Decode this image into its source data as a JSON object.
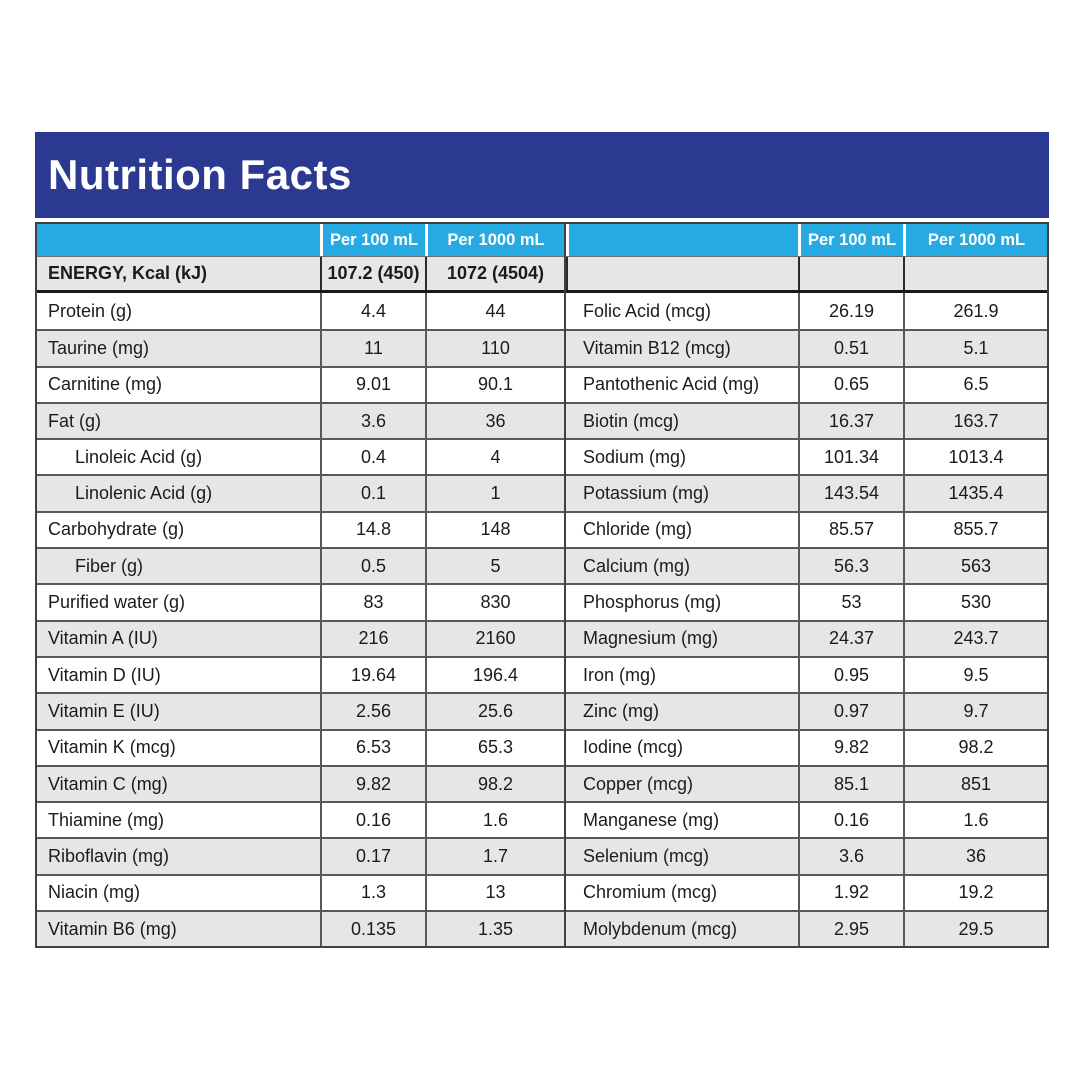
{
  "title": "Nutrition Facts",
  "colors": {
    "banner_blue": "#2B3990",
    "header_cyan": "#27AAE1",
    "zebra_gray": "#E6E6E6"
  },
  "columns": {
    "per100": "Per 100 mL",
    "per1000": "Per 1000 mL"
  },
  "energy": {
    "label": "ENERGY, Kcal (kJ)",
    "per100": "107.2 (450)",
    "per1000": "1072 (4504)"
  },
  "tables": {
    "left": {
      "rows": [
        {
          "label": "Protein (g)",
          "per100": "4.4",
          "per1000": "44",
          "indent": false
        },
        {
          "label": "Taurine (mg)",
          "per100": "11",
          "per1000": "110",
          "indent": false
        },
        {
          "label": "Carnitine (mg)",
          "per100": "9.01",
          "per1000": "90.1",
          "indent": false
        },
        {
          "label": "Fat (g)",
          "per100": "3.6",
          "per1000": "36",
          "indent": false
        },
        {
          "label": "Linoleic Acid (g)",
          "per100": "0.4",
          "per1000": "4",
          "indent": true
        },
        {
          "label": "Linolenic Acid (g)",
          "per100": "0.1",
          "per1000": "1",
          "indent": true
        },
        {
          "label": "Carbohydrate (g)",
          "per100": "14.8",
          "per1000": "148",
          "indent": false
        },
        {
          "label": "Fiber (g)",
          "per100": "0.5",
          "per1000": "5",
          "indent": true
        },
        {
          "label": "Purified water (g)",
          "per100": "83",
          "per1000": "830",
          "indent": false
        },
        {
          "label": "Vitamin A (IU)",
          "per100": "216",
          "per1000": "2160",
          "indent": false
        },
        {
          "label": "Vitamin D (IU)",
          "per100": "19.64",
          "per1000": "196.4",
          "indent": false
        },
        {
          "label": "Vitamin E (IU)",
          "per100": "2.56",
          "per1000": "25.6",
          "indent": false
        },
        {
          "label": "Vitamin K (mcg)",
          "per100": "6.53",
          "per1000": "65.3",
          "indent": false
        },
        {
          "label": "Vitamin C (mg)",
          "per100": "9.82",
          "per1000": "98.2",
          "indent": false
        },
        {
          "label": "Thiamine (mg)",
          "per100": "0.16",
          "per1000": "1.6",
          "indent": false
        },
        {
          "label": "Riboflavin (mg)",
          "per100": "0.17",
          "per1000": "1.7",
          "indent": false
        },
        {
          "label": "Niacin (mg)",
          "per100": "1.3",
          "per1000": "13",
          "indent": false
        },
        {
          "label": "Vitamin B6 (mg)",
          "per100": "0.135",
          "per1000": "1.35",
          "indent": false
        }
      ]
    },
    "right": {
      "rows": [
        {
          "label": "Folic Acid (mcg)",
          "per100": "26.19",
          "per1000": "261.9",
          "indent": false
        },
        {
          "label": "Vitamin B12 (mcg)",
          "per100": "0.51",
          "per1000": "5.1",
          "indent": false
        },
        {
          "label": "Pantothenic Acid (mg)",
          "per100": "0.65",
          "per1000": "6.5",
          "indent": false
        },
        {
          "label": "Biotin (mcg)",
          "per100": "16.37",
          "per1000": "163.7",
          "indent": false
        },
        {
          "label": "Sodium (mg)",
          "per100": "101.34",
          "per1000": "1013.4",
          "indent": false
        },
        {
          "label": "Potassium (mg)",
          "per100": "143.54",
          "per1000": "1435.4",
          "indent": false
        },
        {
          "label": "Chloride (mg)",
          "per100": "85.57",
          "per1000": "855.7",
          "indent": false
        },
        {
          "label": "Calcium (mg)",
          "per100": "56.3",
          "per1000": "563",
          "indent": false
        },
        {
          "label": "Phosphorus (mg)",
          "per100": "53",
          "per1000": "530",
          "indent": false
        },
        {
          "label": "Magnesium (mg)",
          "per100": "24.37",
          "per1000": "243.7",
          "indent": false
        },
        {
          "label": "Iron (mg)",
          "per100": "0.95",
          "per1000": "9.5",
          "indent": false
        },
        {
          "label": "Zinc (mg)",
          "per100": "0.97",
          "per1000": "9.7",
          "indent": false
        },
        {
          "label": "Iodine (mcg)",
          "per100": "9.82",
          "per1000": "98.2",
          "indent": false
        },
        {
          "label": "Copper (mcg)",
          "per100": "85.1",
          "per1000": "851",
          "indent": false
        },
        {
          "label": "Manganese (mg)",
          "per100": "0.16",
          "per1000": "1.6",
          "indent": false
        },
        {
          "label": "Selenium (mcg)",
          "per100": "3.6",
          "per1000": "36",
          "indent": false
        },
        {
          "label": "Chromium (mcg)",
          "per100": "1.92",
          "per1000": "19.2",
          "indent": false
        },
        {
          "label": "Molybdenum (mcg)",
          "per100": "2.95",
          "per1000": "29.5",
          "indent": false
        }
      ]
    }
  }
}
